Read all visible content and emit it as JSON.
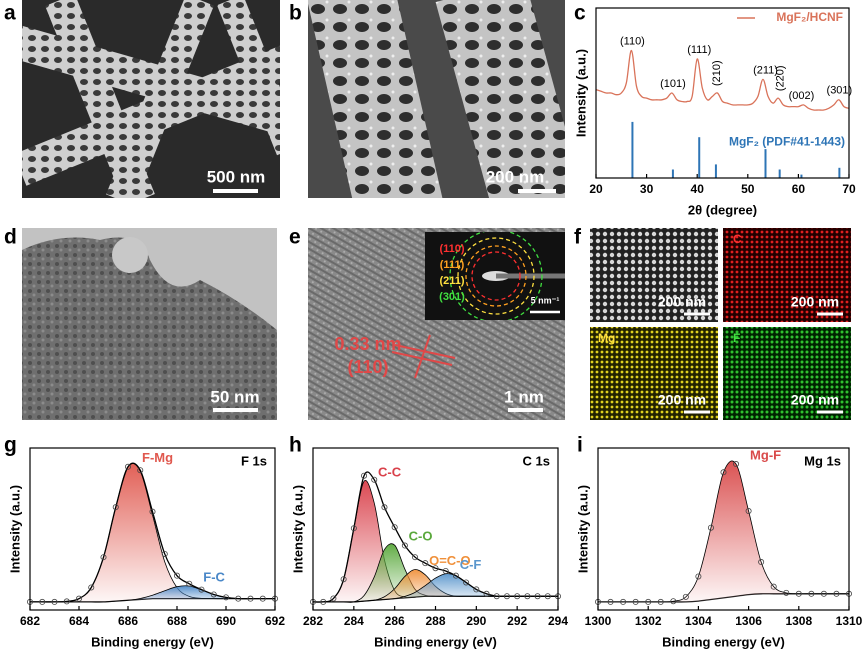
{
  "panel_labels": [
    "a",
    "b",
    "c",
    "d",
    "e",
    "f",
    "g",
    "h",
    "i"
  ],
  "images": {
    "a": {
      "scale_bar": "500 nm"
    },
    "b": {
      "scale_bar": "200 nm"
    },
    "d": {
      "scale_bar": "50 nm"
    },
    "e": {
      "scale_bar": "1 nm",
      "d_spacing": "0.33 nm",
      "plane": "(110)",
      "inset": {
        "rings": [
          "(110)",
          "(111)",
          "(211)",
          "(301)"
        ],
        "scale_bar": "5 nm⁻¹"
      }
    },
    "f": {
      "tiles": [
        {
          "scale_bar": "200 nm"
        },
        {
          "element": "C",
          "scale_bar": "200 nm"
        },
        {
          "element": "Mg",
          "scale_bar": "200 nm"
        },
        {
          "element": "F",
          "scale_bar": "200 nm"
        }
      ]
    }
  },
  "chart_data": [
    {
      "type": "line",
      "xlabel": "2θ (degree)",
      "ylabel": "Intensity (a.u.)",
      "xlim": [
        20,
        70
      ],
      "xticks": [
        20,
        30,
        40,
        50,
        60,
        70
      ],
      "ylim": [
        0,
        100
      ],
      "legend": "upper right",
      "x": [
        20,
        21,
        22,
        23,
        24,
        25,
        26,
        27,
        28,
        29,
        30,
        31,
        32,
        33,
        34,
        35,
        36,
        37,
        38,
        39,
        40,
        41,
        42,
        43,
        44,
        45,
        46,
        47,
        48,
        49,
        50,
        51,
        52,
        53,
        54,
        55,
        56,
        57,
        58,
        59,
        60,
        61,
        62,
        63,
        64,
        65,
        66,
        67,
        68,
        69,
        70
      ],
      "series": [
        {
          "name": "MgF₂/HCNF",
          "color": "#d9735a",
          "values": [
            52,
            51,
            50,
            50,
            49,
            50,
            56,
            75,
            54,
            48,
            47,
            46,
            46,
            46,
            47,
            50,
            46,
            45,
            45,
            48,
            70,
            53,
            46,
            48,
            50,
            45,
            44,
            43,
            43,
            43,
            43,
            44,
            48,
            58,
            48,
            44,
            47,
            43,
            42,
            42,
            42,
            43,
            41,
            40,
            40,
            40,
            41,
            43,
            46,
            42,
            41
          ]
        }
      ],
      "reference": {
        "name": "MgF₂ (PDF#41-1443)",
        "color": "#2e75b6",
        "x": [
          27.2,
          35.2,
          40.4,
          43.7,
          53.5,
          56.3,
          60.6,
          68.1
        ],
        "values": [
          33,
          5,
          24,
          8,
          17,
          5,
          2,
          6
        ],
        "labels": [
          "(110)",
          "(101)",
          "(111)",
          "(210)",
          "(211)",
          "(220)",
          "(002)",
          "(301)"
        ]
      }
    },
    {
      "type": "line",
      "title": "F 1s",
      "xlabel": "Binding energy (eV)",
      "ylabel": "Intensity (a.u.)",
      "xlim": [
        682,
        692
      ],
      "xticks": [
        682,
        684,
        686,
        688,
        690,
        692
      ],
      "ylim": [
        0,
        100
      ],
      "x": [
        682,
        682.5,
        683,
        683.5,
        684,
        684.5,
        685,
        685.5,
        686,
        686.5,
        687,
        687.5,
        688,
        688.5,
        689,
        689.5,
        690,
        690.5,
        691,
        691.5,
        692
      ],
      "series": [
        {
          "color": "#222222",
          "values": [
            5,
            5,
            5,
            5,
            5,
            5,
            5,
            5.5,
            6,
            6.5,
            7,
            7,
            7,
            7,
            7,
            7,
            7,
            7,
            7,
            7,
            7
          ]
        },
        {
          "name": "F-Mg",
          "color": "#e0584e",
          "fill": true,
          "values": [
            5,
            5,
            5,
            5.3,
            7,
            13.9,
            32.6,
            63.5,
            88.4,
            85.7,
            58.6,
            29.7,
            13.8,
            8.4,
            7.2,
            7,
            7,
            7,
            7,
            7,
            7
          ]
        },
        {
          "name": "F-C",
          "color": "#4a88c8",
          "fill": true,
          "values": [
            5,
            5,
            5,
            5,
            5,
            5,
            5,
            5.5,
            6,
            7.1,
            9.1,
            11.9,
            14.4,
            14.8,
            12.4,
            9.6,
            7.8,
            7,
            7,
            7,
            7
          ]
        },
        {
          "color": "#000000",
          "markers": true,
          "values": [
            5,
            5,
            5,
            5.3,
            7,
            13.9,
            32.6,
            63.5,
            88.4,
            86.3,
            60.7,
            34.6,
            21.2,
            16.2,
            12.6,
            9.6,
            7.8,
            7,
            7,
            7,
            7
          ]
        }
      ]
    },
    {
      "type": "line",
      "title": "C 1s",
      "xlabel": "Binding energy (eV)",
      "ylabel": "Intensity (a.u.)",
      "xlim": [
        282,
        294
      ],
      "xticks": [
        282,
        284,
        286,
        288,
        290,
        292,
        294
      ],
      "ylim": [
        0,
        100
      ],
      "x": [
        282,
        282.5,
        283,
        283.5,
        284,
        284.5,
        285,
        285.5,
        286,
        286.5,
        287,
        287.5,
        288,
        288.5,
        289,
        289.5,
        290,
        290.5,
        291,
        291.5,
        292,
        292.5,
        293,
        293.5,
        294
      ],
      "series": [
        {
          "color": "#222222",
          "values": [
            5,
            5,
            5,
            5,
            5,
            5.5,
            6,
            6.5,
            7,
            7.5,
            8,
            8.5,
            8.5,
            8.5,
            8.5,
            8.5,
            8.5,
            8.5,
            8.5,
            8.5,
            8.5,
            8.5,
            8.5,
            8.5,
            8.5
          ]
        },
        {
          "name": "C-C",
          "color": "#d9404a",
          "fill": true,
          "values": [
            5,
            5,
            7.1,
            19,
            50.5,
            79.5,
            66,
            30.9,
            12,
            8,
            8,
            8.5,
            8.5,
            8.5,
            8.5,
            8.5,
            8.5,
            8.5,
            8.5,
            8.5,
            8.5,
            8.5,
            8.5,
            8.5,
            8.5
          ]
        },
        {
          "name": "C-O",
          "color": "#5aa83c",
          "fill": true,
          "values": [
            5,
            5,
            5,
            5,
            5,
            8.9,
            20.4,
            37.3,
            40,
            25.2,
            12.7,
            9.1,
            8.5,
            8.5,
            8.5,
            8.5,
            8.5,
            8.5,
            8.5,
            8.5,
            8.5,
            8.5,
            8.5,
            8.5,
            8.5
          ]
        },
        {
          "name": "O=C-O",
          "color": "#f0903a",
          "fill": true,
          "values": [
            5,
            5,
            5,
            5,
            5,
            5.5,
            6,
            8.2,
            13.1,
            20.7,
            25,
            21.7,
            14.6,
            10.2,
            8.5,
            8.5,
            8.5,
            8.5,
            8.5,
            8.5,
            8.5,
            8.5,
            8.5,
            8.5,
            8.5
          ]
        },
        {
          "name": "C-F",
          "color": "#5a96cc",
          "fill": true,
          "values": [
            5,
            5,
            5,
            5,
            5,
            5.5,
            6,
            6.5,
            7,
            8.4,
            10.9,
            15.1,
            19.7,
            22.4,
            21.2,
            17,
            12.7,
            10,
            8.5,
            8.5,
            8.5,
            8.5,
            8.5,
            8.5,
            8.5
          ]
        },
        {
          "color": "#000000",
          "markers": true,
          "values": [
            5,
            5,
            7.1,
            19,
            50.5,
            82.9,
            80.4,
            63.4,
            51.1,
            39.8,
            32.6,
            28.9,
            25.8,
            24.1,
            21.2,
            17,
            12.7,
            10,
            8.5,
            8.5,
            8.5,
            8.5,
            8.5,
            8.5,
            8.5
          ]
        }
      ]
    },
    {
      "type": "line",
      "title": "Mg 1s",
      "xlabel": "Binding energy (eV)",
      "ylabel": "Intensity (a.u.)",
      "xlim": [
        1300,
        1310
      ],
      "xticks": [
        1300,
        1302,
        1304,
        1306,
        1308,
        1310
      ],
      "ylim": [
        0,
        100
      ],
      "x": [
        1300,
        1300.5,
        1301,
        1301.5,
        1302,
        1302.5,
        1303,
        1303.5,
        1304,
        1304.5,
        1305,
        1305.5,
        1306,
        1306.5,
        1307,
        1307.5,
        1308,
        1308.5,
        1309,
        1309.5,
        1310
      ],
      "series": [
        {
          "color": "#222222",
          "values": [
            5,
            5,
            5,
            5,
            5,
            5,
            5,
            5,
            5.5,
            6.5,
            7.5,
            8.5,
            9.5,
            10,
            10,
            10,
            10,
            10,
            10,
            10,
            10
          ]
        },
        {
          "name": "Mg-F",
          "color": "#d94a4a",
          "fill": true,
          "markers": true,
          "values": [
            5,
            5,
            5,
            5,
            5,
            5,
            5.4,
            8.1,
            20.7,
            50.8,
            85,
            90.1,
            61.1,
            29.6,
            14.4,
            10.6,
            10,
            10,
            10,
            10,
            10
          ]
        }
      ]
    }
  ]
}
